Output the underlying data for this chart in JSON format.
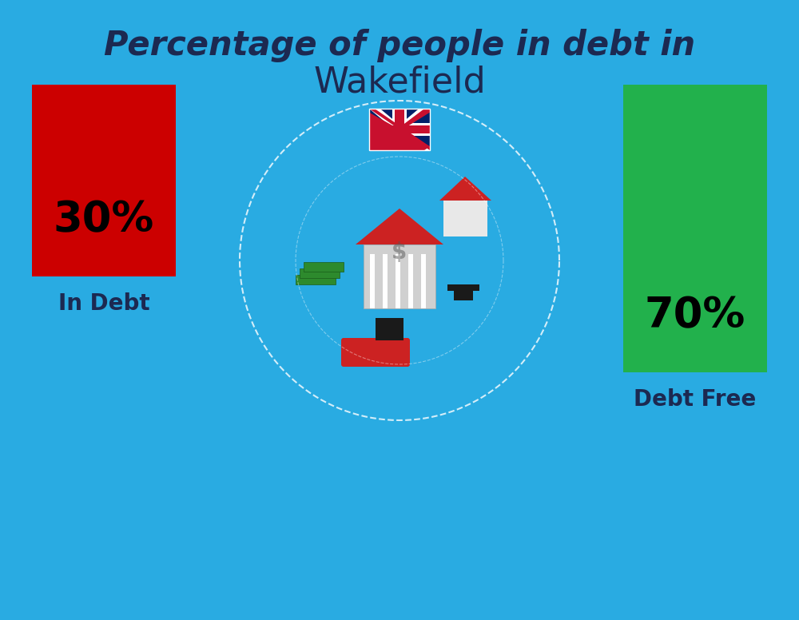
{
  "title_line1": "Percentage of people in debt in",
  "title_line2": "Wakefield",
  "background_color": "#29ABE2",
  "bar1_label": "30%",
  "bar1_sublabel": "In Debt",
  "bar1_color": "#CC0000",
  "bar2_label": "70%",
  "bar2_sublabel": "Debt Free",
  "bar2_color": "#22B14C",
  "text_color": "#1C2951",
  "label_color": "#1C2951",
  "title_fontsize": 30,
  "subtitle_fontsize": 32,
  "bar_label_fontsize": 38,
  "bar_sublabel_fontsize": 20
}
